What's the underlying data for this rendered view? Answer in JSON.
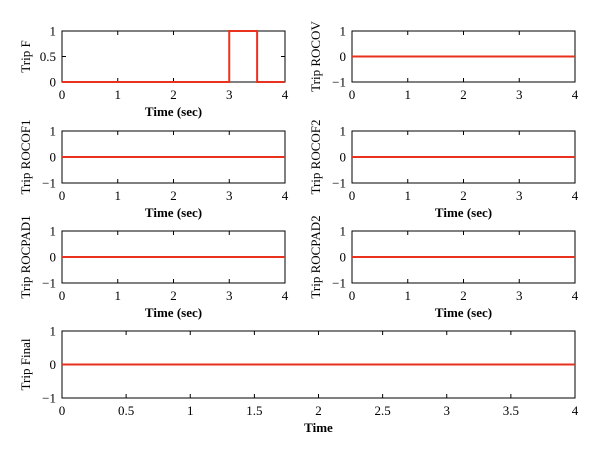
{
  "chart_data": [
    {
      "type": "line",
      "ylabel": "Trip F",
      "xlabel": "Time (sec)",
      "xlim": [
        0,
        4
      ],
      "ylim": [
        0,
        1
      ],
      "xticks": [
        "0",
        "1",
        "2",
        "3",
        "4"
      ],
      "yticks": [
        "0",
        "0.5",
        "1"
      ],
      "grid": false,
      "series": [
        {
          "x": [
            0,
            3,
            3,
            3.5,
            3.5,
            4
          ],
          "y": [
            0,
            0,
            1,
            1,
            0,
            0
          ]
        }
      ]
    },
    {
      "type": "line",
      "ylabel": "Trip ROCOV",
      "xlabel": "",
      "xlim": [
        0,
        4
      ],
      "ylim": [
        -1,
        1
      ],
      "xticks": [
        "0",
        "1",
        "2",
        "3",
        "4"
      ],
      "yticks": [
        "−1",
        "0",
        "1"
      ],
      "grid": false,
      "series": [
        {
          "x": [
            0,
            4
          ],
          "y": [
            0,
            0
          ]
        }
      ]
    },
    {
      "type": "line",
      "ylabel": "Trip ROCOF1",
      "xlabel": "Time (sec)",
      "xlim": [
        0,
        4
      ],
      "ylim": [
        -1,
        1
      ],
      "xticks": [
        "0",
        "1",
        "2",
        "3",
        "4"
      ],
      "yticks": [
        "−1",
        "0",
        "1"
      ],
      "grid": false,
      "series": [
        {
          "x": [
            0,
            4
          ],
          "y": [
            0,
            0
          ]
        }
      ]
    },
    {
      "type": "line",
      "ylabel": "Trip ROCOF2",
      "xlabel": "Time (sec)",
      "xlim": [
        0,
        4
      ],
      "ylim": [
        -1,
        1
      ],
      "xticks": [
        "0",
        "1",
        "2",
        "3",
        "4"
      ],
      "yticks": [
        "−1",
        "0",
        "1"
      ],
      "grid": false,
      "series": [
        {
          "x": [
            0,
            4
          ],
          "y": [
            0,
            0
          ]
        }
      ]
    },
    {
      "type": "line",
      "ylabel": "Trip ROCPAD1",
      "xlabel": "Time (sec)",
      "xlim": [
        0,
        4
      ],
      "ylim": [
        -1,
        1
      ],
      "xticks": [
        "0",
        "1",
        "2",
        "3",
        "4"
      ],
      "yticks": [
        "−1",
        "0",
        "1"
      ],
      "grid": false,
      "series": [
        {
          "x": [
            0,
            4
          ],
          "y": [
            0,
            0
          ]
        }
      ]
    },
    {
      "type": "line",
      "ylabel": "Trip ROCPAD2",
      "xlabel": "Time (sec)",
      "xlim": [
        0,
        4
      ],
      "ylim": [
        -1,
        1
      ],
      "xticks": [
        "0",
        "1",
        "2",
        "3",
        "4"
      ],
      "yticks": [
        "−1",
        "0",
        "1"
      ],
      "grid": false,
      "series": [
        {
          "x": [
            0,
            4
          ],
          "y": [
            0,
            0
          ]
        }
      ]
    },
    {
      "type": "line",
      "ylabel": "Trip Final",
      "xlabel": "Time",
      "xlim": [
        0,
        4
      ],
      "ylim": [
        -1,
        1
      ],
      "xticks": [
        "0",
        "0.5",
        "1",
        "1.5",
        "2",
        "2.5",
        "3",
        "3.5",
        "4"
      ],
      "yticks": [
        "−1",
        "0",
        "1"
      ],
      "grid": false,
      "series": [
        {
          "x": [
            0,
            4
          ],
          "y": [
            0,
            0
          ]
        }
      ]
    }
  ],
  "colors": {
    "series": "#e8321e",
    "axes": "#000000",
    "background": "#ffffff"
  }
}
